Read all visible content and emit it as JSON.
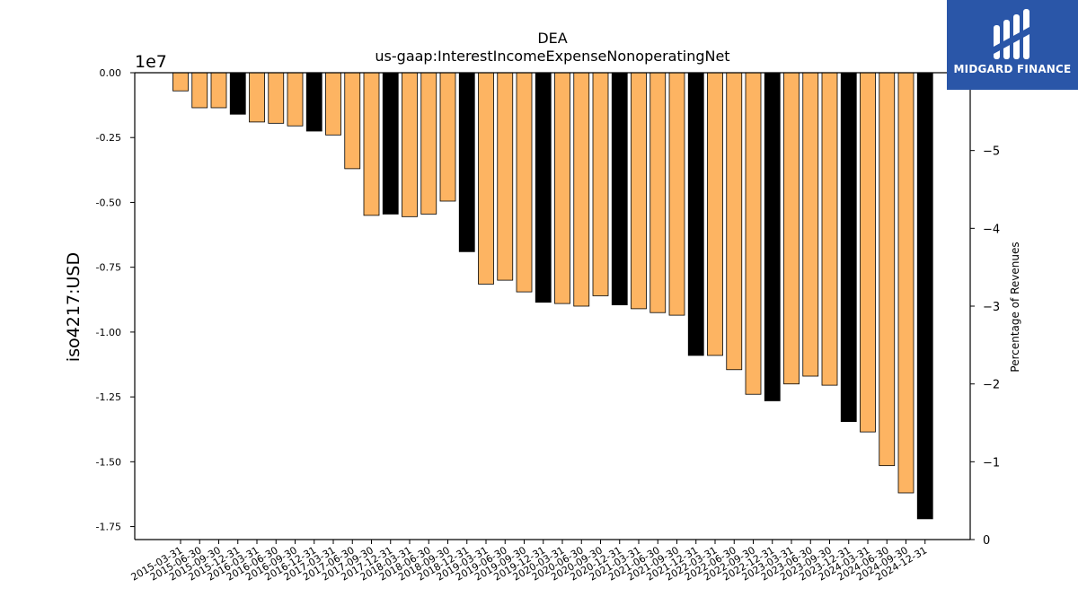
{
  "brand": {
    "name": "MIDGARD FINANCE",
    "bg_color": "#2a56a8"
  },
  "chart_data": {
    "type": "bar",
    "title": "DEA",
    "subtitle": "us-gaap:InterestIncomeExpenseNonoperatingNet",
    "ylabel": "iso4217:USD",
    "y_offset_label": "1e7",
    "y2label": "Percentage of Revenues",
    "ylim": [
      -1.8,
      0
    ],
    "yticks": [
      "0.00",
      "-0.25",
      "-0.50",
      "-0.75",
      "-1.00",
      "-1.25",
      "-1.50",
      "-1.75"
    ],
    "y2lim": [
      0,
      -6
    ],
    "y2ticks": [
      "0",
      "−1",
      "−2",
      "−3",
      "−4",
      "−5"
    ],
    "grid": false,
    "colors": {
      "quarter": "#fdb462",
      "fiscal_year_end": "#000000",
      "edge": "#000000"
    },
    "categories": [
      "2015-03-31",
      "2015-06-30",
      "2015-09-30",
      "2015-12-31",
      "2016-03-31",
      "2016-06-30",
      "2016-09-30",
      "2016-12-31",
      "2017-03-31",
      "2017-06-30",
      "2017-09-30",
      "2017-12-31",
      "2018-03-31",
      "2018-06-30",
      "2018-09-30",
      "2018-12-31",
      "2019-03-31",
      "2019-06-30",
      "2019-09-30",
      "2019-12-31",
      "2020-03-31",
      "2020-06-30",
      "2020-09-30",
      "2020-12-31",
      "2021-03-31",
      "2021-06-30",
      "2021-09-30",
      "2021-12-31",
      "2022-03-31",
      "2022-06-30",
      "2022-09-30",
      "2022-12-31",
      "2023-03-31",
      "2023-06-30",
      "2023-09-30",
      "2023-12-31",
      "2024-03-31",
      "2024-06-30",
      "2024-09-30",
      "2024-12-31"
    ],
    "values": [
      -0.07,
      -0.135,
      -0.135,
      -0.16,
      -0.19,
      -0.195,
      -0.205,
      -0.225,
      -0.24,
      -0.37,
      -0.55,
      -0.545,
      -0.555,
      -0.545,
      -0.495,
      -0.69,
      -0.815,
      -0.8,
      -0.845,
      -0.885,
      -0.89,
      -0.9,
      -0.86,
      -0.895,
      -0.91,
      -0.925,
      -0.935,
      -1.09,
      -1.09,
      -1.145,
      -1.24,
      -1.265,
      -1.2,
      -1.17,
      -1.205,
      -1.345,
      -1.385,
      -1.515,
      -1.62,
      -1.72
    ],
    "fiscal_year_end": [
      false,
      false,
      false,
      true,
      false,
      false,
      false,
      true,
      false,
      false,
      false,
      true,
      false,
      false,
      false,
      true,
      false,
      false,
      false,
      true,
      false,
      false,
      false,
      true,
      false,
      false,
      false,
      true,
      false,
      false,
      false,
      true,
      false,
      false,
      false,
      true,
      false,
      false,
      false,
      true
    ]
  }
}
